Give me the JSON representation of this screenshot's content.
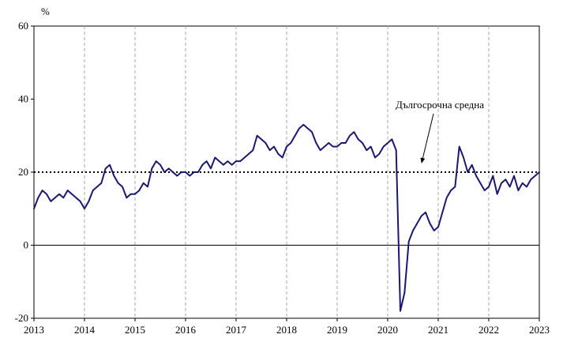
{
  "chart_data": {
    "type": "line",
    "title": "",
    "ylabel": "%",
    "xlabel": "",
    "ylim": [
      -20,
      60
    ],
    "yticks": [
      -20,
      0,
      20,
      40,
      60
    ],
    "xticks": [
      2013,
      2014,
      2015,
      2016,
      2017,
      2018,
      2019,
      2020,
      2021,
      2022,
      2023
    ],
    "x_start_year": 2013,
    "x_end_year": 2023,
    "points_per_year": 12,
    "grid": "vertical-dashed",
    "legend_position": "none",
    "zero_line": 0,
    "average_line": {
      "value": 20,
      "label": "Дългосрочна средна"
    },
    "colors": {
      "series": "#191970",
      "grid": "#aaaaaa",
      "average": "#000000",
      "axis": "#000000"
    },
    "series": [
      {
        "values": [
          10,
          13,
          15,
          14,
          12,
          13,
          14,
          13,
          15,
          14,
          13,
          12,
          10,
          12,
          15,
          16,
          17,
          21,
          22,
          19,
          17,
          16,
          13,
          14,
          14,
          15,
          17,
          16,
          21,
          23,
          22,
          20,
          21,
          20,
          19,
          20,
          20,
          19,
          20,
          20,
          22,
          23,
          21,
          24,
          23,
          22,
          23,
          22,
          23,
          23,
          24,
          25,
          26,
          30,
          29,
          28,
          26,
          27,
          25,
          24,
          27,
          28,
          30,
          32,
          33,
          32,
          31,
          28,
          26,
          27,
          28,
          27,
          27,
          28,
          28,
          30,
          31,
          29,
          28,
          26,
          27,
          24,
          25,
          27,
          28,
          29,
          26,
          -18,
          -13,
          1,
          4,
          6,
          8,
          9,
          6,
          4,
          5,
          9,
          13,
          15,
          16,
          27,
          24,
          20,
          22,
          19,
          17,
          15,
          16,
          19,
          14,
          17,
          18,
          16,
          19,
          15,
          17,
          16,
          18,
          19,
          20
        ]
      }
    ]
  }
}
